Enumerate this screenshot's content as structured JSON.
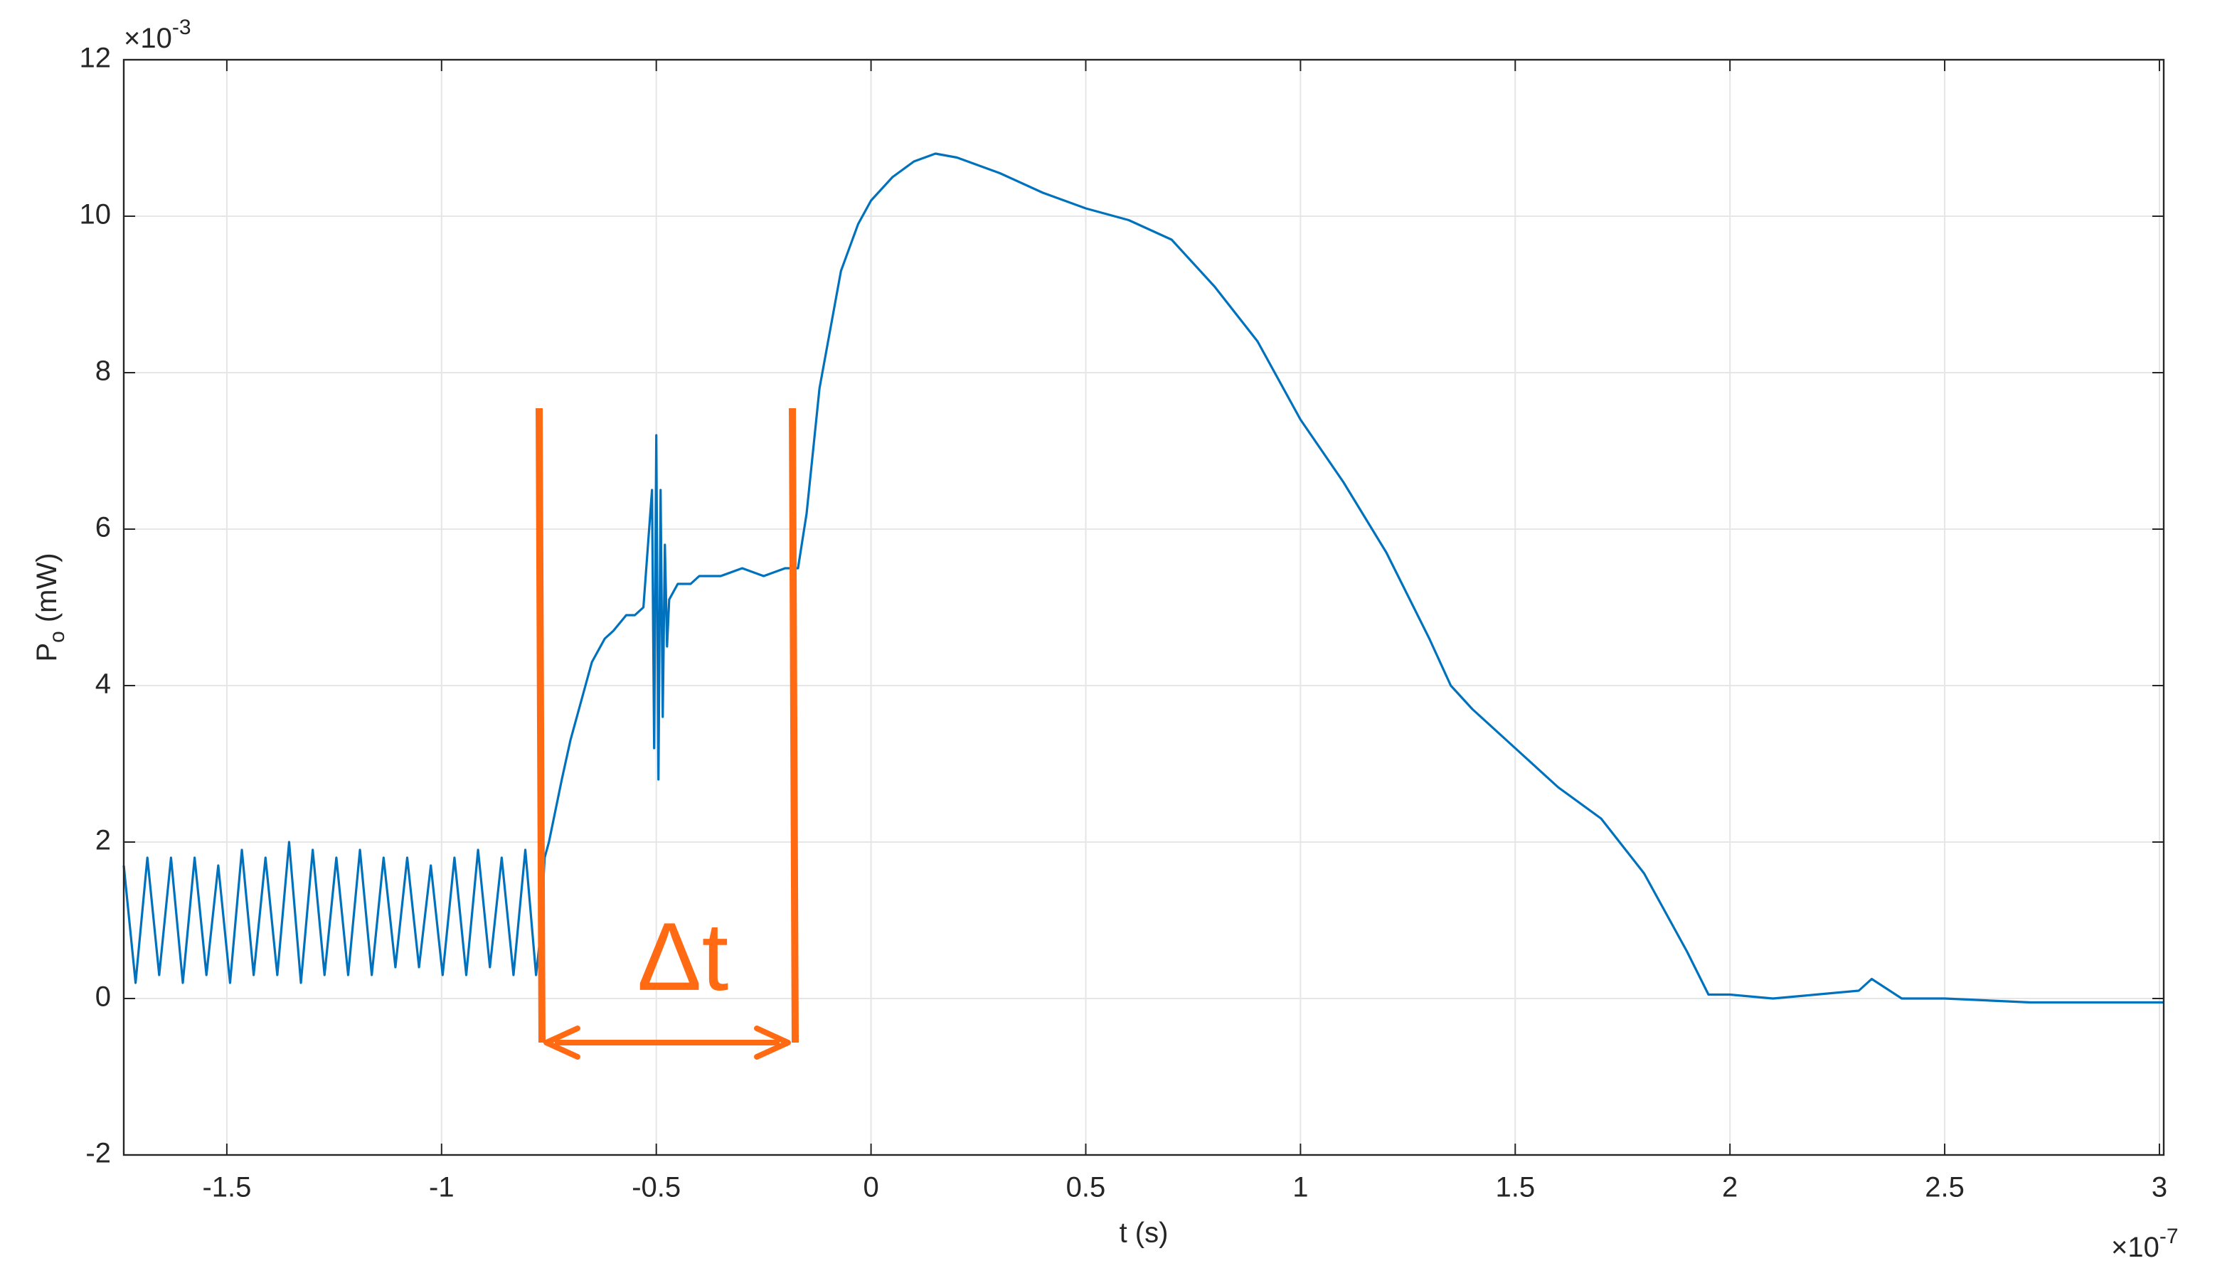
{
  "chart_data": {
    "type": "line",
    "xlabel": "t (s)",
    "ylabel": {
      "main": "P",
      "sub": "o",
      "unit": "(mW)"
    },
    "x_exponent": {
      "base": "×10",
      "power": "-7"
    },
    "y_exponent": {
      "base": "×10",
      "power": "-3"
    },
    "annotation": "Δt",
    "annotation_color": "#ff6a13",
    "xlim": [
      -1.74,
      3.01
    ],
    "ylim": [
      -2,
      12
    ],
    "xticks": [
      -1.5,
      -1,
      -0.5,
      0,
      0.5,
      1,
      1.5,
      2,
      2.5,
      3
    ],
    "yticks": [
      -2,
      0,
      2,
      4,
      6,
      8,
      10,
      12
    ],
    "grid": true,
    "series": [
      {
        "color": "#0072bd",
        "x": [
          -1.74,
          -1.7125,
          -1.685,
          -1.6575,
          -1.63,
          -1.6025,
          -1.575,
          -1.5475,
          -1.52,
          -1.4925,
          -1.465,
          -1.4375,
          -1.41,
          -1.3825,
          -1.355,
          -1.3275,
          -1.3,
          -1.2725,
          -1.245,
          -1.2175,
          -1.19,
          -1.1625,
          -1.135,
          -1.1075,
          -1.08,
          -1.0525,
          -1.025,
          -0.9975,
          -0.97,
          -0.9425,
          -0.915,
          -0.8875,
          -0.86,
          -0.8325,
          -0.805,
          -0.78,
          -0.77,
          -0.76,
          -0.75,
          -0.72,
          -0.7,
          -0.67,
          -0.65,
          -0.62,
          -0.6,
          -0.57,
          -0.55,
          -0.53,
          -0.51,
          -0.505,
          -0.5,
          -0.495,
          -0.49,
          -0.485,
          -0.48,
          -0.475,
          -0.47,
          -0.45,
          -0.42,
          -0.4,
          -0.35,
          -0.3,
          -0.25,
          -0.2,
          -0.17,
          -0.15,
          -0.12,
          -0.1,
          -0.07,
          -0.03,
          0,
          0.05,
          0.1,
          0.15,
          0.2,
          0.3,
          0.4,
          0.5,
          0.6,
          0.7,
          0.8,
          0.9,
          1.0,
          1.1,
          1.2,
          1.3,
          1.35,
          1.4,
          1.5,
          1.6,
          1.7,
          1.8,
          1.9,
          1.95,
          2.0,
          2.1,
          2.2,
          2.3,
          2.33,
          2.4,
          2.5,
          2.7,
          2.9,
          3.01
        ],
        "values": [
          1.7,
          0.2,
          1.8,
          0.3,
          1.8,
          0.2,
          1.8,
          0.3,
          1.7,
          0.2,
          1.9,
          0.3,
          1.8,
          0.3,
          2.0,
          0.2,
          1.9,
          0.3,
          1.8,
          0.3,
          1.9,
          0.3,
          1.8,
          0.4,
          1.8,
          0.4,
          1.7,
          0.3,
          1.8,
          0.3,
          1.9,
          0.4,
          1.8,
          0.3,
          1.9,
          0.3,
          0.8,
          1.8,
          2.0,
          2.8,
          3.3,
          3.9,
          4.3,
          4.6,
          4.7,
          4.9,
          4.9,
          5.0,
          6.5,
          3.2,
          7.2,
          2.8,
          6.5,
          3.6,
          5.8,
          4.5,
          5.1,
          5.3,
          5.3,
          5.4,
          5.4,
          5.5,
          5.4,
          5.5,
          5.5,
          6.2,
          7.8,
          8.4,
          9.3,
          9.9,
          10.2,
          10.5,
          10.7,
          10.8,
          10.75,
          10.55,
          10.3,
          10.1,
          9.95,
          9.7,
          9.1,
          8.4,
          7.4,
          6.6,
          5.7,
          4.6,
          4.0,
          3.7,
          3.2,
          2.7,
          2.3,
          1.6,
          0.6,
          0.05,
          0.05,
          0.0,
          0.05,
          0.1,
          0.25,
          0.0,
          0.0,
          -0.05,
          -0.05,
          -0.05
        ]
      }
    ]
  }
}
